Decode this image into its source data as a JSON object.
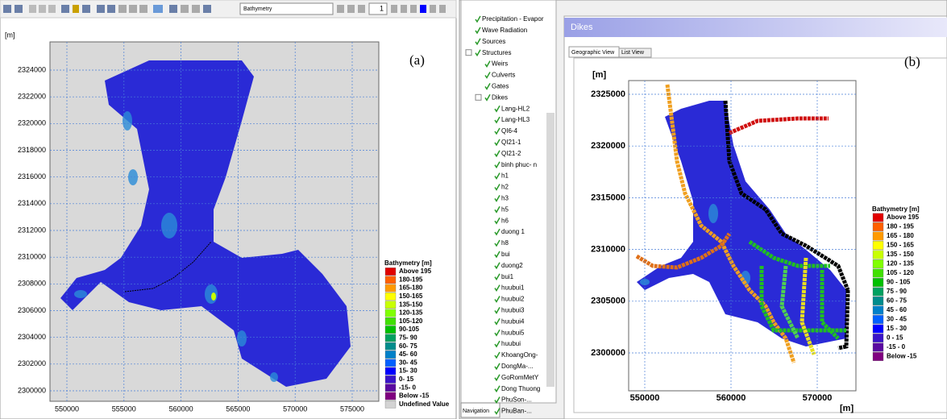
{
  "left": {
    "toolbar": {
      "dropdown": "Bathymetry",
      "page": "1"
    },
    "unit": "[m]",
    "label": "(a)",
    "yticks": [
      2300000,
      2302000,
      2304000,
      2306000,
      2308000,
      2310000,
      2312000,
      2314000,
      2316000,
      2318000,
      2320000,
      2322000,
      2324000
    ],
    "xticks": [
      550000,
      555000,
      560000,
      565000,
      570000,
      575000
    ],
    "legend": {
      "title": "Bathymetry [m]",
      "items": [
        {
          "label": "Above 195",
          "color": "#e00000"
        },
        {
          "label": "180-195",
          "color": "#ff6000"
        },
        {
          "label": "165-180",
          "color": "#ff9a00"
        },
        {
          "label": "150-165",
          "color": "#ffff00"
        },
        {
          "label": "135-150",
          "color": "#c8ff00"
        },
        {
          "label": "120-135",
          "color": "#80ff00"
        },
        {
          "label": "105-120",
          "color": "#40e000"
        },
        {
          "label": "90-105",
          "color": "#00c000"
        },
        {
          "label": "75- 90",
          "color": "#00a060"
        },
        {
          "label": "60- 75",
          "color": "#008c8c"
        },
        {
          "label": "45- 60",
          "color": "#0080c8"
        },
        {
          "label": "30- 45",
          "color": "#0060ff"
        },
        {
          "label": "15- 30",
          "color": "#0000ff"
        },
        {
          "label": "0- 15",
          "color": "#3a14c8"
        },
        {
          "label": "-15- 0",
          "color": "#5a0aa0"
        },
        {
          "label": "Below -15",
          "color": "#800080"
        },
        {
          "label": "Undefined Value",
          "color": "#d3d3d3"
        }
      ]
    }
  },
  "right": {
    "tree": [
      {
        "label": "Precipitation - Evapor"
      },
      {
        "label": "Wave Radiation"
      },
      {
        "label": "Sources"
      },
      {
        "label": "Structures",
        "children": [
          {
            "label": "Weirs"
          },
          {
            "label": "Culverts"
          },
          {
            "label": "Gates"
          },
          {
            "label": "Dikes",
            "children": [
              {
                "label": "Lang-HL2"
              },
              {
                "label": "Lang-HL3"
              },
              {
                "label": "QI6-4"
              },
              {
                "label": "QI21-1"
              },
              {
                "label": "QI21-2"
              },
              {
                "label": "binh phuc- n"
              },
              {
                "label": "h1"
              },
              {
                "label": "h2"
              },
              {
                "label": "h3"
              },
              {
                "label": "h5"
              },
              {
                "label": "h6"
              },
              {
                "label": "duong 1"
              },
              {
                "label": "h8"
              },
              {
                "label": "bui"
              },
              {
                "label": "duong2"
              },
              {
                "label": "bui1"
              },
              {
                "label": "huubui1"
              },
              {
                "label": "huubui2"
              },
              {
                "label": "huubui3"
              },
              {
                "label": "huubui4"
              },
              {
                "label": "huubui5"
              },
              {
                "label": "huubui"
              },
              {
                "label": "KhoangOng-"
              },
              {
                "label": "DongMa-..."
              },
              {
                "label": "GoRomMetY"
              },
              {
                "label": "Dong Thuong"
              },
              {
                "label": "PhuSon-..."
              },
              {
                "label": "PhuBan-..."
              }
            ]
          }
        ]
      }
    ],
    "nav_tab": "Navigation",
    "window_title": "Dikes",
    "tabs": [
      "Geographic View",
      "List View"
    ],
    "label": "(b)",
    "y_unit": "[m]",
    "x_unit": "[m]",
    "yticks": [
      2300000,
      2305000,
      2310000,
      2315000,
      2320000,
      2325000
    ],
    "xticks": [
      550000,
      560000,
      570000
    ],
    "legend": {
      "title": "Bathymetry [m]",
      "items": [
        {
          "label": "Above 195",
          "color": "#e00000"
        },
        {
          "label": "180 - 195",
          "color": "#ff6000"
        },
        {
          "label": "165 - 180",
          "color": "#ff9a00"
        },
        {
          "label": "150 - 165",
          "color": "#ffff00"
        },
        {
          "label": "135 - 150",
          "color": "#c8ff00"
        },
        {
          "label": "120 - 135",
          "color": "#80ff00"
        },
        {
          "label": "105 - 120",
          "color": "#40e000"
        },
        {
          "label": "90 - 105",
          "color": "#00c000"
        },
        {
          "label": "75 -  90",
          "color": "#00a060"
        },
        {
          "label": "60 -  75",
          "color": "#008c8c"
        },
        {
          "label": "45 -  60",
          "color": "#0080c8"
        },
        {
          "label": "30 -  45",
          "color": "#0060ff"
        },
        {
          "label": "15 -  30",
          "color": "#0000ff"
        },
        {
          "label": "0 -  15",
          "color": "#3a14c8"
        },
        {
          "label": "-15 -   0",
          "color": "#5a0aa0"
        },
        {
          "label": "Below -15",
          "color": "#800080"
        }
      ]
    }
  }
}
